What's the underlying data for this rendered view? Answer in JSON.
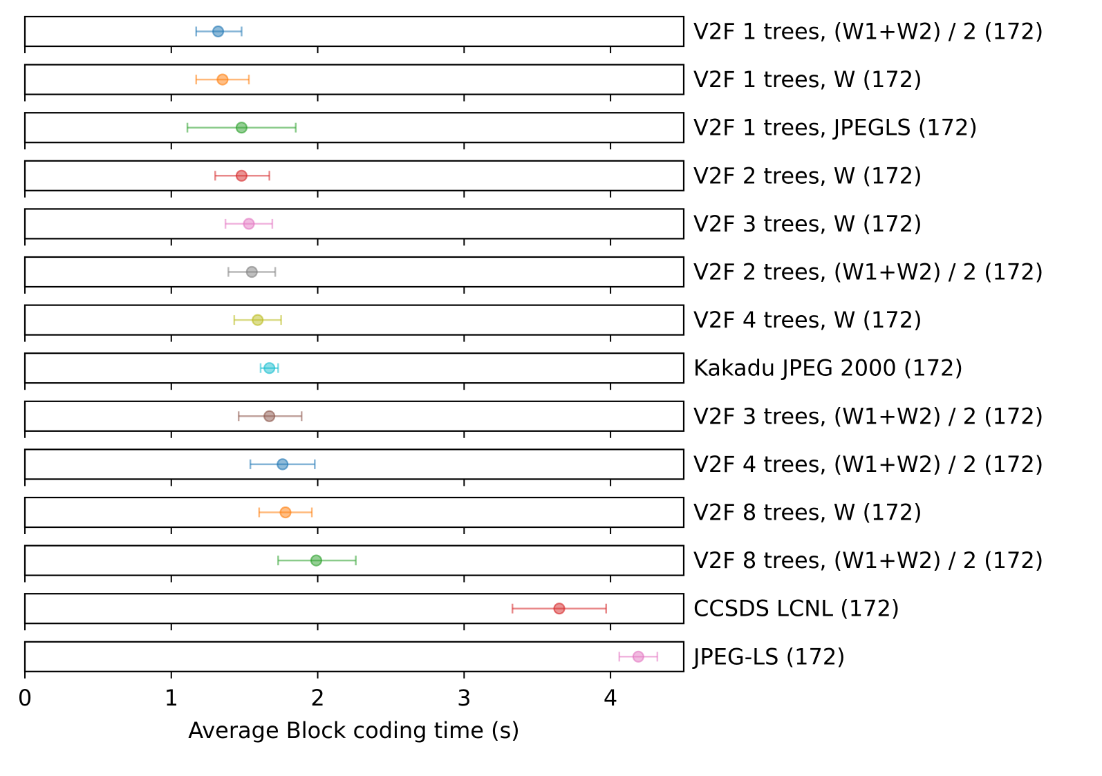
{
  "chart_data": {
    "type": "scatter",
    "orientation": "horizontal",
    "xlabel": "Average Block coding time (s)",
    "xlim": [
      0,
      4.5
    ],
    "xticks": [
      0,
      1,
      2,
      3,
      4
    ],
    "grid": false,
    "rows": [
      {
        "label": "V2F 1 trees, (W1+W2) / 2 (172)",
        "mean": 1.32,
        "lower": 1.17,
        "upper": 1.48,
        "color": "#1f77b4"
      },
      {
        "label": "V2F 1 trees, W (172)",
        "mean": 1.35,
        "lower": 1.17,
        "upper": 1.53,
        "color": "#ff7f0e"
      },
      {
        "label": "V2F 1 trees, JPEGLS (172)",
        "mean": 1.48,
        "lower": 1.11,
        "upper": 1.85,
        "color": "#2ca02c"
      },
      {
        "label": "V2F 2 trees, W (172)",
        "mean": 1.48,
        "lower": 1.3,
        "upper": 1.67,
        "color": "#d62728"
      },
      {
        "label": "V2F 3 trees, W (172)",
        "mean": 1.53,
        "lower": 1.37,
        "upper": 1.69,
        "color": "#e377c2"
      },
      {
        "label": "V2F 2 trees, (W1+W2) / 2 (172)",
        "mean": 1.55,
        "lower": 1.39,
        "upper": 1.71,
        "color": "#7f7f7f"
      },
      {
        "label": "V2F 4 trees, W (172)",
        "mean": 1.59,
        "lower": 1.43,
        "upper": 1.75,
        "color": "#bcbd22"
      },
      {
        "label": "Kakadu JPEG 2000 (172)",
        "mean": 1.67,
        "lower": 1.61,
        "upper": 1.73,
        "color": "#17becf"
      },
      {
        "label": "V2F 3 trees, (W1+W2) / 2 (172)",
        "mean": 1.67,
        "lower": 1.46,
        "upper": 1.89,
        "color": "#8c564b"
      },
      {
        "label": "V2F 4 trees, (W1+W2) / 2 (172)",
        "mean": 1.76,
        "lower": 1.54,
        "upper": 1.98,
        "color": "#1f77b4"
      },
      {
        "label": "V2F 8 trees, W (172)",
        "mean": 1.78,
        "lower": 1.6,
        "upper": 1.96,
        "color": "#ff7f0e"
      },
      {
        "label": "V2F 8 trees, (W1+W2) / 2 (172)",
        "mean": 1.99,
        "lower": 1.73,
        "upper": 2.26,
        "color": "#2ca02c"
      },
      {
        "label": "CCSDS LCNL (172)",
        "mean": 3.65,
        "lower": 3.33,
        "upper": 3.97,
        "color": "#d62728"
      },
      {
        "label": "JPEG-LS (172)",
        "mean": 4.19,
        "lower": 4.06,
        "upper": 4.32,
        "color": "#e377c2"
      }
    ]
  }
}
